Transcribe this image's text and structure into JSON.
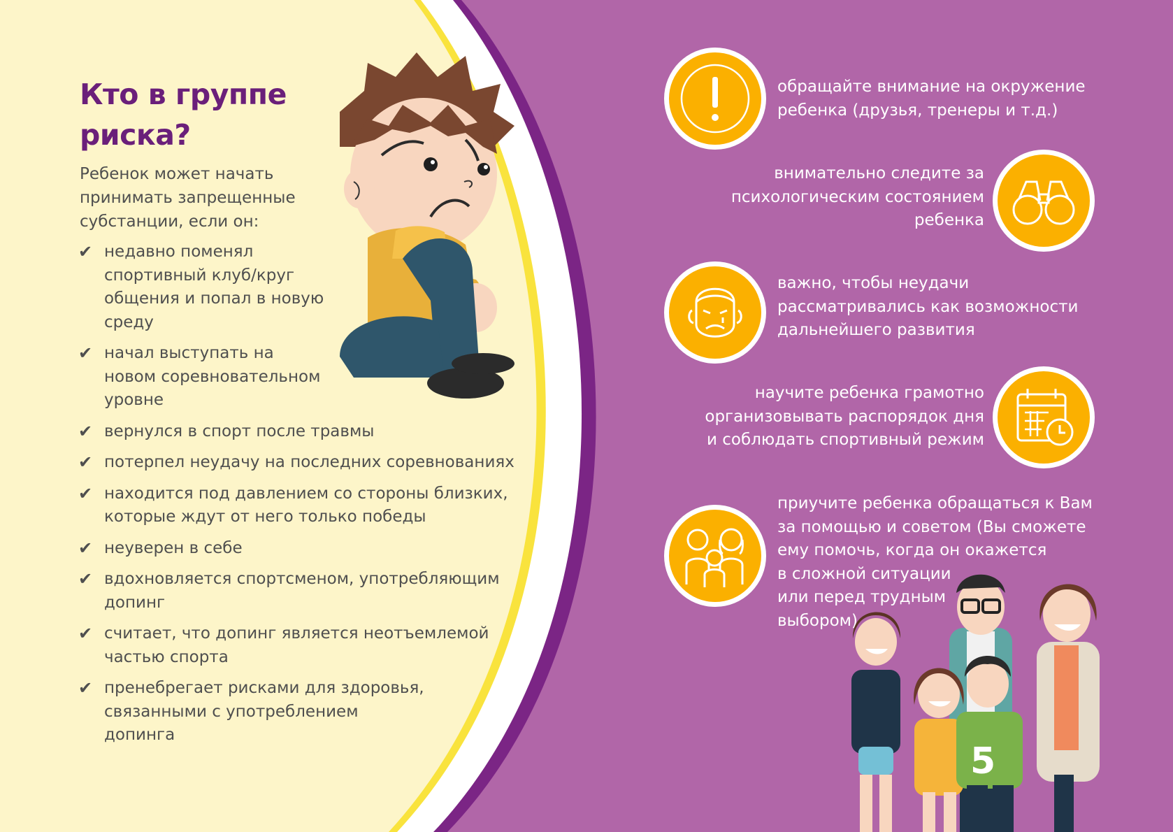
{
  "title": "Кто в группе\nриска?",
  "intro": "Ребенок может начать\nпринимать запрещенные\nсубстанции, если он:",
  "check_symbol": "✔",
  "risk_items": [
    "недавно поменял\nспортивный клуб/круг\nобщения и попал в новую\nсреду",
    "начал выступать на\nновом соревновательном\nуровне",
    "вернулся в спорт после травмы",
    "потерпел неудачу на последних соревнованиях",
    "находится под давлением со стороны близких,\nкоторые ждут от него только победы",
    "неуверен в себе",
    "вдохновляется спортсменом, употребляющим\nдопинг",
    "считает, что допинг является неотъемлемой\nчастью спорта",
    "пренебрегает рисками для здоровья,\nсвязанными с употреблением\nдопинга"
  ],
  "advice": [
    {
      "text": "обращайте внимание на окружение\nребенка (друзья, тренеры и т.д.)",
      "icon": "exclamation-icon"
    },
    {
      "text": "внимательно следите за\nпсихологическим состоянием\nребенка",
      "icon": "binoculars-icon"
    },
    {
      "text": "важно, чтобы неудачи\nрассматривались как возможности\nдальнейшего развития",
      "icon": "sad-face-icon"
    },
    {
      "text": "научите ребенка грамотно\nорганизовывать распорядок дня\nи соблюдать спортивный режим",
      "icon": "calendar-clock-icon"
    },
    {
      "text": "приучите ребенка обращаться к Вам\nза помощью и советом (Вы сможете\nему помочь, когда он окажется\nв сложной ситуации\nили перед трудным\nвыбором)",
      "icon": "family-icon"
    }
  ],
  "colors": {
    "purple_bg": "#b166a8",
    "cream_bg": "#fdf5c9",
    "title": "#6a1f7a",
    "icon_orange": "#fbb000",
    "ring_yellow": "#f9e33d",
    "ring_purple": "#7b2585"
  },
  "family_shirt_number": "5"
}
